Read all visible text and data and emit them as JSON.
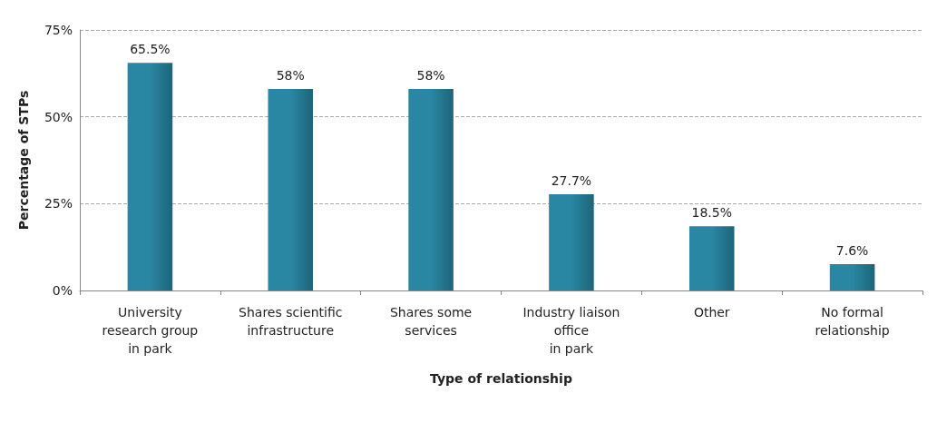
{
  "chart_data": {
    "type": "bar",
    "xlabel": "Type of relationship",
    "ylabel": "Percentage of STPs",
    "categories": [
      "University\nresearch group\nin park",
      "Shares scientific\ninfrastructure",
      "Shares some\nservices",
      "Industry liaison\noffice\nin park",
      "Other",
      "No formal\nrelationship"
    ],
    "values": [
      65.5,
      58,
      58,
      27.7,
      18.5,
      7.6
    ],
    "value_labels": [
      "65.5%",
      "58%",
      "58%",
      "27.7%",
      "18.5%",
      "7.6%"
    ],
    "color": "#2a87a3",
    "ylim": [
      0,
      75
    ],
    "yticks": [
      {
        "value": 0,
        "label": "0%"
      },
      {
        "value": 25,
        "label": "25%"
      },
      {
        "value": 50,
        "label": "50%"
      },
      {
        "value": 75,
        "label": "75%"
      }
    ],
    "grid": "y"
  }
}
